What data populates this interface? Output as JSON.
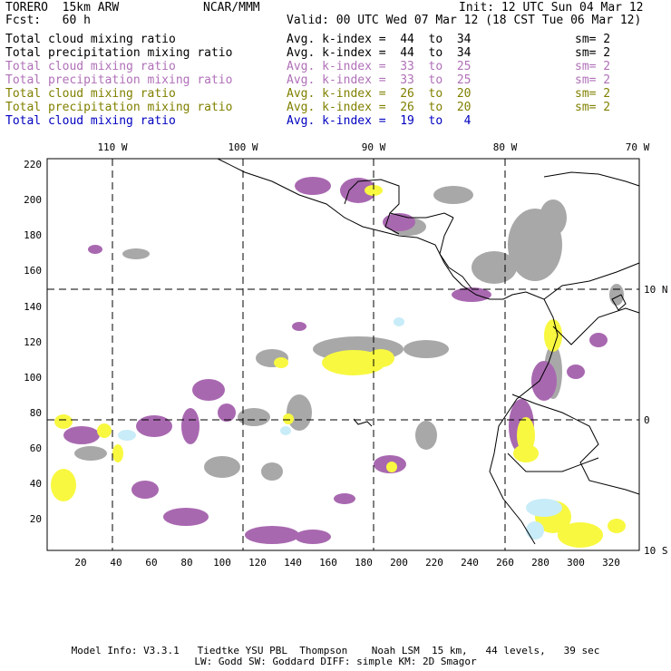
{
  "header": {
    "model": "TORERO  15km ARW",
    "org": "NCAR/MMM",
    "init": "Init: 12 UTC Sun 04 Mar 12",
    "fcst": "Fcst:   60 h",
    "valid": "Valid: 00 UTC Wed 07 Mar 12 (18 CST Tue 06 Mar 12)"
  },
  "legend": [
    {
      "field": "Total cloud mixing ratio",
      "kindex": "Avg. k-index =  44  to  34",
      "sm": "sm= 2",
      "color": "#000000"
    },
    {
      "field": "Total precipitation mixing ratio",
      "kindex": "Avg. k-index =  44  to  34",
      "sm": "sm= 2",
      "color": "#000000"
    },
    {
      "field": "Total cloud mixing ratio",
      "kindex": "Avg. k-index =  33  to  25",
      "sm": "sm= 2",
      "color": "#b070b8"
    },
    {
      "field": "Total precipitation mixing ratio",
      "kindex": "Avg. k-index =  33  to  25",
      "sm": "sm= 2",
      "color": "#b070b8"
    },
    {
      "field": "Total cloud mixing ratio",
      "kindex": "Avg. k-index =  26  to  20",
      "sm": "sm= 2",
      "color": "#808000"
    },
    {
      "field": "Total precipitation mixing ratio",
      "kindex": "Avg. k-index =  26  to  20",
      "sm": "sm= 2",
      "color": "#808000"
    },
    {
      "field": "Total cloud mixing ratio",
      "kindex": "Avg. k-index =  19  to   4",
      "sm": "",
      "color": "#0000c0"
    }
  ],
  "map": {
    "lon_labels": [
      "110 W",
      "100 W",
      "90 W",
      "80 W",
      "70 W"
    ],
    "lat_labels": [
      "10 N",
      "0",
      "10 S"
    ],
    "y_ticks": [
      "220",
      "200",
      "180",
      "160",
      "140",
      "120",
      "100",
      "80",
      "60",
      "40",
      "20"
    ],
    "x_ticks": [
      "20",
      "40",
      "60",
      "80",
      "100",
      "120",
      "140",
      "160",
      "180",
      "200",
      "220",
      "240",
      "260",
      "280",
      "300",
      "320"
    ],
    "colors": {
      "gray": "#a8a8a8",
      "purple": "#a868b0",
      "yellow": "#f8f840",
      "lightblue": "#c8ecf8"
    }
  },
  "footer": {
    "line1": "Model Info: V3.3.1   Tiedtke YSU PBL  Thompson    Noah LSM  15 km,   44 levels,   39 sec",
    "line2": "LW: Godd SW: Goddard DIFF: simple KM: 2D Smagor"
  }
}
